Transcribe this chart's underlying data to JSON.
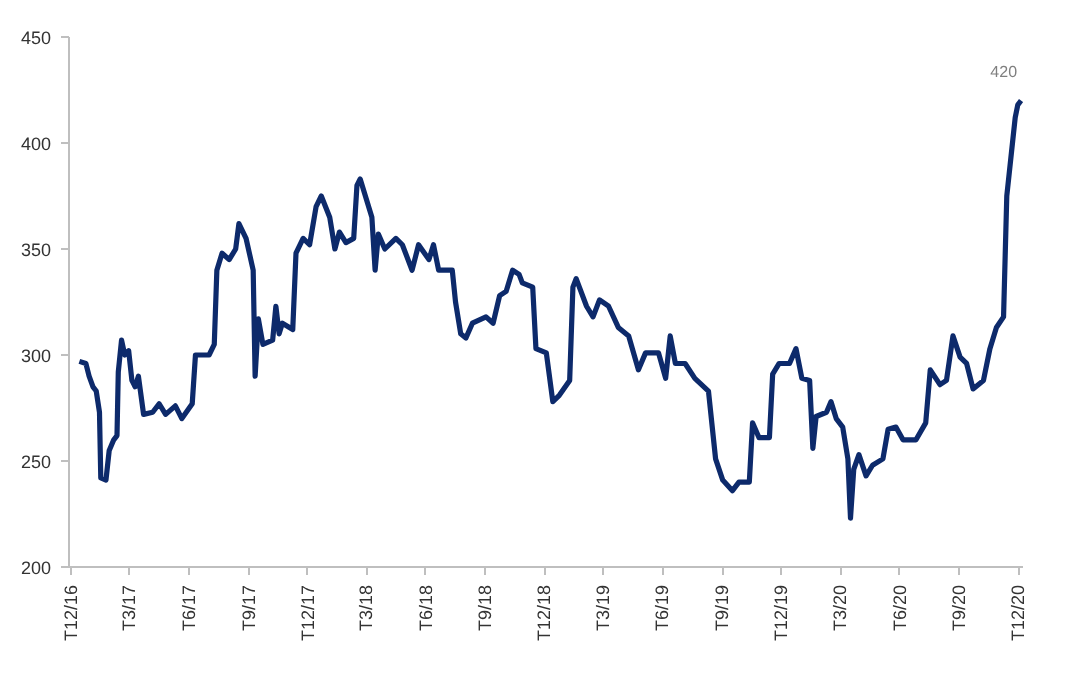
{
  "chart_data": {
    "type": "line",
    "color": "#0d2a6b",
    "line_style": "solid",
    "marker": "none",
    "grid": false,
    "xlim": [
      "2016-11-28",
      "2020-12-08"
    ],
    "ylim": [
      200,
      450
    ],
    "yticks": [
      200,
      250,
      300,
      350,
      400,
      450
    ],
    "xticks": [
      {
        "value": "2016-12-01",
        "label": "T12/16"
      },
      {
        "value": "2017-03-01",
        "label": "T3/17"
      },
      {
        "value": "2017-06-01",
        "label": "T6/17"
      },
      {
        "value": "2017-09-01",
        "label": "T9/17"
      },
      {
        "value": "2017-12-01",
        "label": "T12/17"
      },
      {
        "value": "2018-03-01",
        "label": "T3/18"
      },
      {
        "value": "2018-06-01",
        "label": "T6/18"
      },
      {
        "value": "2018-09-01",
        "label": "T9/18"
      },
      {
        "value": "2018-12-01",
        "label": "T12/18"
      },
      {
        "value": "2019-03-01",
        "label": "T3/19"
      },
      {
        "value": "2019-06-01",
        "label": "T6/19"
      },
      {
        "value": "2019-09-01",
        "label": "T9/19"
      },
      {
        "value": "2019-12-01",
        "label": "T12/19"
      },
      {
        "value": "2020-03-01",
        "label": "T3/20"
      },
      {
        "value": "2020-06-01",
        "label": "T6/20"
      },
      {
        "value": "2020-09-01",
        "label": "T9/20"
      },
      {
        "value": "2020-12-01",
        "label": "T12/20"
      }
    ],
    "x": [
      "2016-12-14",
      "2016-12-24",
      "2016-12-29",
      "2017-01-04",
      "2017-01-09",
      "2017-01-14",
      "2017-01-16",
      "2017-01-24",
      "2017-01-29",
      "2017-02-05",
      "2017-02-10",
      "2017-02-12",
      "2017-02-17",
      "2017-02-22",
      "2017-02-28",
      "2017-03-05",
      "2017-03-10",
      "2017-03-15",
      "2017-03-23",
      "2017-04-06",
      "2017-04-16",
      "2017-04-26",
      "2017-05-11",
      "2017-05-21",
      "2017-06-06",
      "2017-06-11",
      "2017-06-22",
      "2017-07-02",
      "2017-07-10",
      "2017-07-14",
      "2017-07-22",
      "2017-08-02",
      "2017-08-12",
      "2017-08-17",
      "2017-08-28",
      "2017-09-08",
      "2017-09-11",
      "2017-09-16",
      "2017-09-23",
      "2017-10-08",
      "2017-10-13",
      "2017-10-18",
      "2017-10-23",
      "2017-11-08",
      "2017-11-13",
      "2017-11-24",
      "2017-12-04",
      "2017-12-14",
      "2017-12-22",
      "2018-01-04",
      "2018-01-12",
      "2018-01-19",
      "2018-01-29",
      "2018-02-10",
      "2018-02-15",
      "2018-02-20",
      "2018-02-28",
      "2018-03-10",
      "2018-03-15",
      "2018-03-20",
      "2018-03-30",
      "2018-04-16",
      "2018-04-26",
      "2018-05-11",
      "2018-05-21",
      "2018-06-06",
      "2018-06-13",
      "2018-06-21",
      "2018-07-12",
      "2018-07-17",
      "2018-07-25",
      "2018-08-02",
      "2018-08-12",
      "2018-09-02",
      "2018-09-13",
      "2018-09-23",
      "2018-10-03",
      "2018-10-13",
      "2018-10-23",
      "2018-10-28",
      "2018-11-13",
      "2018-11-18",
      "2018-12-04",
      "2018-12-14",
      "2018-12-24",
      "2019-01-09",
      "2019-01-14",
      "2019-01-19",
      "2019-02-04",
      "2019-02-14",
      "2019-02-24",
      "2019-03-10",
      "2019-03-25",
      "2019-04-10",
      "2019-04-25",
      "2019-05-06",
      "2019-05-26",
      "2019-06-06",
      "2019-06-13",
      "2019-06-21",
      "2019-07-06",
      "2019-07-21",
      "2019-08-11",
      "2019-08-22",
      "2019-09-02",
      "2019-09-17",
      "2019-09-27",
      "2019-10-13",
      "2019-10-18",
      "2019-10-28",
      "2019-11-13",
      "2019-11-18",
      "2019-11-28",
      "2019-12-14",
      "2019-12-24",
      "2020-01-02",
      "2020-01-14",
      "2020-01-19",
      "2020-01-24",
      "2020-02-09",
      "2020-02-16",
      "2020-02-24",
      "2020-03-05",
      "2020-03-13",
      "2020-03-17",
      "2020-03-22",
      "2020-03-30",
      "2020-04-10",
      "2020-04-20",
      "2020-05-06",
      "2020-05-14",
      "2020-05-26",
      "2020-06-06",
      "2020-06-26",
      "2020-07-11",
      "2020-07-18",
      "2020-08-02",
      "2020-08-12",
      "2020-08-22",
      "2020-09-02",
      "2020-09-12",
      "2020-09-22",
      "2020-10-08",
      "2020-10-18",
      "2020-10-28",
      "2020-11-08",
      "2020-11-13",
      "2020-11-20",
      "2020-11-26",
      "2020-11-30",
      "2020-12-05"
    ],
    "values": [
      297,
      296,
      290,
      285,
      283,
      273,
      242,
      241,
      255,
      260,
      262,
      292,
      307,
      300,
      302,
      288,
      285,
      290,
      272,
      273,
      277,
      272,
      276,
      270,
      277,
      300,
      300,
      300,
      305,
      340,
      348,
      345,
      350,
      362,
      355,
      340,
      290,
      317,
      305,
      307,
      323,
      310,
      315,
      312,
      348,
      355,
      352,
      370,
      375,
      365,
      350,
      358,
      353,
      355,
      380,
      383,
      375,
      365,
      340,
      357,
      350,
      355,
      352,
      340,
      352,
      345,
      352,
      340,
      340,
      325,
      310,
      308,
      315,
      318,
      315,
      328,
      330,
      340,
      338,
      334,
      332,
      303,
      301,
      278,
      281,
      288,
      332,
      336,
      323,
      318,
      326,
      323,
      313,
      309,
      293,
      301,
      301,
      289,
      309,
      296,
      296,
      289,
      283,
      251,
      241,
      236,
      240,
      240,
      268,
      261,
      261,
      291,
      296,
      296,
      303,
      289,
      288,
      256,
      271,
      273,
      278,
      270,
      266,
      251,
      223,
      246,
      253,
      243,
      248,
      251,
      265,
      266,
      260,
      260,
      268,
      293,
      286,
      288,
      309,
      299,
      296,
      284,
      288,
      303,
      313,
      318,
      375,
      395,
      412,
      418,
      420
    ],
    "annotations": [
      {
        "text": "420",
        "x": "2020-12-05",
        "y": 420
      }
    ]
  }
}
